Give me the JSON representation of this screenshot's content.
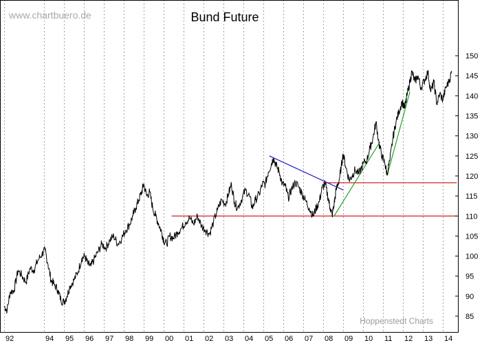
{
  "watermark": "www.chartbuero.de",
  "credit": "Hoppenstedt Charts",
  "chart_data": {
    "type": "line",
    "title": "Bund Future",
    "xlabel": "",
    "ylabel": "",
    "x_range": [
      1992.0,
      2014.7
    ],
    "ylim": [
      82.5,
      153
    ],
    "y_ticks": [
      85,
      90,
      95,
      100,
      105,
      110,
      115,
      120,
      125,
      130,
      135,
      140,
      145,
      150
    ],
    "x_ticks": [
      {
        "x": 1992,
        "label": "92"
      },
      {
        "x": 1994,
        "label": "94"
      },
      {
        "x": 1995,
        "label": "95"
      },
      {
        "x": 1996,
        "label": "96"
      },
      {
        "x": 1997,
        "label": "97"
      },
      {
        "x": 1998,
        "label": "98"
      },
      {
        "x": 1999,
        "label": "99"
      },
      {
        "x": 2000,
        "label": "00"
      },
      {
        "x": 2001,
        "label": "01"
      },
      {
        "x": 2002,
        "label": "02"
      },
      {
        "x": 2003,
        "label": "03"
      },
      {
        "x": 2004,
        "label": "04"
      },
      {
        "x": 2005,
        "label": "05"
      },
      {
        "x": 2006,
        "label": "06"
      },
      {
        "x": 2007,
        "label": "07"
      },
      {
        "x": 2008,
        "label": "08"
      },
      {
        "x": 2009,
        "label": "09"
      },
      {
        "x": 2010,
        "label": "10"
      },
      {
        "x": 2011,
        "label": "11"
      },
      {
        "x": 2012,
        "label": "12"
      },
      {
        "x": 2013,
        "label": "13"
      },
      {
        "x": 2014,
        "label": "14"
      }
    ],
    "grid": "vertical dotted",
    "y_axis_side": "right",
    "series": [
      {
        "color": "#000000",
        "points": [
          [
            1992.0,
            87.5
          ],
          [
            1992.15,
            86.5
          ],
          [
            1992.3,
            91
          ],
          [
            1992.5,
            91.5
          ],
          [
            1992.7,
            96.5
          ],
          [
            1992.9,
            95
          ],
          [
            1993.1,
            93.5
          ],
          [
            1993.3,
            97
          ],
          [
            1993.5,
            96.5
          ],
          [
            1993.7,
            99
          ],
          [
            1993.9,
            100.5
          ],
          [
            1994.05,
            101.5
          ],
          [
            1994.2,
            98
          ],
          [
            1994.35,
            94
          ],
          [
            1994.5,
            93
          ],
          [
            1994.7,
            91.5
          ],
          [
            1994.85,
            89
          ],
          [
            1995.0,
            88.5
          ],
          [
            1995.15,
            90
          ],
          [
            1995.3,
            92.5
          ],
          [
            1995.5,
            94
          ],
          [
            1995.7,
            96
          ],
          [
            1995.9,
            99.5
          ],
          [
            1996.05,
            100
          ],
          [
            1996.2,
            98
          ],
          [
            1996.35,
            97.5
          ],
          [
            1996.5,
            99
          ],
          [
            1996.7,
            101
          ],
          [
            1996.9,
            103
          ],
          [
            1997.1,
            102
          ],
          [
            1997.3,
            104
          ],
          [
            1997.5,
            105
          ],
          [
            1997.7,
            103
          ],
          [
            1997.9,
            104.5
          ],
          [
            1998.1,
            106.5
          ],
          [
            1998.3,
            108
          ],
          [
            1998.45,
            110
          ],
          [
            1998.6,
            112
          ],
          [
            1998.75,
            114
          ],
          [
            1998.9,
            116
          ],
          [
            1999.0,
            118
          ],
          [
            1999.15,
            115
          ],
          [
            1999.3,
            116
          ],
          [
            1999.45,
            112
          ],
          [
            1999.6,
            110
          ],
          [
            1999.75,
            108
          ],
          [
            1999.9,
            106
          ],
          [
            2000.0,
            104
          ],
          [
            2000.15,
            103
          ],
          [
            2000.3,
            105
          ],
          [
            2000.5,
            104.5
          ],
          [
            2000.7,
            106
          ],
          [
            2000.9,
            107
          ],
          [
            2001.1,
            108.5
          ],
          [
            2001.3,
            109.5
          ],
          [
            2001.5,
            108
          ],
          [
            2001.7,
            110
          ],
          [
            2001.9,
            107.5
          ],
          [
            2002.1,
            106.5
          ],
          [
            2002.3,
            105.5
          ],
          [
            2002.5,
            108.5
          ],
          [
            2002.7,
            111.5
          ],
          [
            2002.9,
            114
          ],
          [
            2003.1,
            113
          ],
          [
            2003.25,
            115.5
          ],
          [
            2003.4,
            118
          ],
          [
            2003.55,
            113.5
          ],
          [
            2003.7,
            112
          ],
          [
            2003.9,
            114
          ],
          [
            2004.1,
            116.5
          ],
          [
            2004.3,
            115
          ],
          [
            2004.45,
            112
          ],
          [
            2004.6,
            114
          ],
          [
            2004.8,
            115.5
          ],
          [
            2004.95,
            118
          ],
          [
            2005.1,
            118
          ],
          [
            2005.25,
            121
          ],
          [
            2005.4,
            123
          ],
          [
            2005.5,
            124.5
          ],
          [
            2005.65,
            122.5
          ],
          [
            2005.8,
            121
          ],
          [
            2005.95,
            118
          ],
          [
            2006.1,
            117.5
          ],
          [
            2006.25,
            114.5
          ],
          [
            2006.4,
            116.5
          ],
          [
            2006.6,
            118.5
          ],
          [
            2006.8,
            117
          ],
          [
            2006.95,
            115.5
          ],
          [
            2007.1,
            114
          ],
          [
            2007.3,
            112
          ],
          [
            2007.5,
            110
          ],
          [
            2007.65,
            112
          ],
          [
            2007.8,
            113.5
          ],
          [
            2007.95,
            117
          ],
          [
            2008.1,
            118
          ],
          [
            2008.25,
            114.5
          ],
          [
            2008.35,
            112
          ],
          [
            2008.45,
            110.2
          ],
          [
            2008.55,
            113
          ],
          [
            2008.65,
            116.5
          ],
          [
            2008.8,
            119
          ],
          [
            2008.9,
            122
          ],
          [
            2009.0,
            125.5
          ],
          [
            2009.15,
            122
          ],
          [
            2009.3,
            119
          ],
          [
            2009.45,
            120
          ],
          [
            2009.6,
            121.5
          ],
          [
            2009.8,
            120.5
          ],
          [
            2010.0,
            123
          ],
          [
            2010.2,
            124
          ],
          [
            2010.35,
            127
          ],
          [
            2010.5,
            129.5
          ],
          [
            2010.65,
            133.5
          ],
          [
            2010.8,
            128
          ],
          [
            2010.95,
            125
          ],
          [
            2011.1,
            123
          ],
          [
            2011.2,
            120.5
          ],
          [
            2011.35,
            124
          ],
          [
            2011.5,
            129.5
          ],
          [
            2011.65,
            133.5
          ],
          [
            2011.8,
            136
          ],
          [
            2011.95,
            138.5
          ],
          [
            2012.1,
            137
          ],
          [
            2012.2,
            140
          ],
          [
            2012.35,
            143.5
          ],
          [
            2012.45,
            146
          ],
          [
            2012.6,
            143.5
          ],
          [
            2012.75,
            145
          ],
          [
            2012.9,
            142
          ],
          [
            2013.1,
            144
          ],
          [
            2013.25,
            146
          ],
          [
            2013.4,
            141
          ],
          [
            2013.55,
            143.5
          ],
          [
            2013.7,
            138
          ],
          [
            2013.85,
            140.5
          ],
          [
            2014.0,
            139
          ],
          [
            2014.15,
            142
          ],
          [
            2014.3,
            143.5
          ],
          [
            2014.45,
            146
          ]
        ]
      }
    ],
    "annotation_lines": [
      {
        "color": "#d62020",
        "from": [
          2000.4,
          110
        ],
        "to": [
          2014.7,
          110
        ]
      },
      {
        "color": "#d62020",
        "from": [
          2008.0,
          118.3
        ],
        "to": [
          2014.7,
          118.3
        ]
      },
      {
        "color": "#1a1acc",
        "from": [
          2005.3,
          125
        ],
        "to": [
          2009.0,
          116.5
        ]
      },
      {
        "color": "#22a022",
        "from": [
          2008.55,
          110
        ],
        "to": [
          2010.85,
          128.5
        ]
      },
      {
        "color": "#22a022",
        "from": [
          2011.2,
          120
        ],
        "to": [
          2012.35,
          141
        ]
      }
    ]
  }
}
